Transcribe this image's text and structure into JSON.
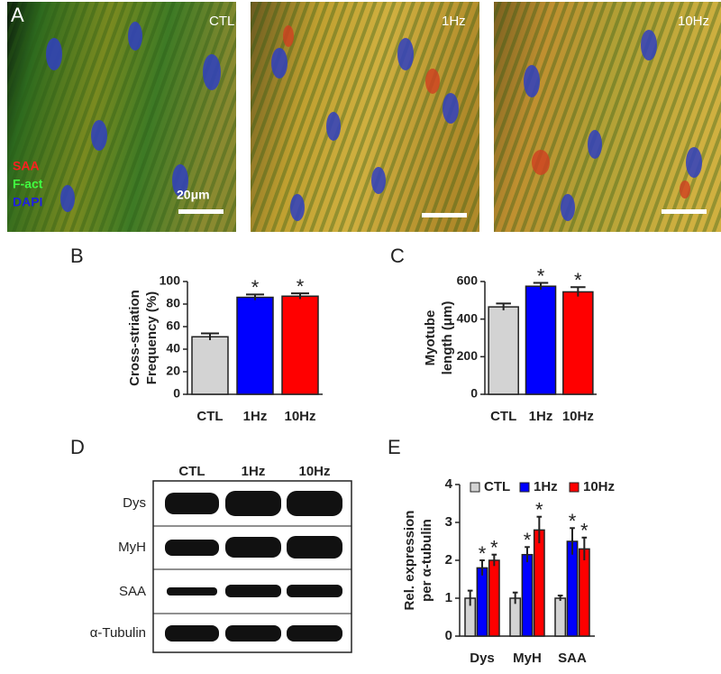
{
  "panels": {
    "a": "A",
    "b": "B",
    "c": "C",
    "d": "D",
    "e": "E"
  },
  "images": [
    {
      "label": "CTL",
      "legend": [
        "SAA",
        "F-act",
        "DAPI"
      ],
      "scale": "20μm"
    },
    {
      "label": "1Hz"
    },
    {
      "label": "10Hz"
    }
  ],
  "blot": {
    "columns": [
      "CTL",
      "1Hz",
      "10Hz"
    ],
    "rows": [
      "Dys",
      "MyH",
      "SAA",
      "α-Tubulin"
    ]
  },
  "chart_data": [
    {
      "type": "bar",
      "ylabel": [
        "Cross-striation",
        "Frequency (%)"
      ],
      "categories": [
        "CTL",
        "1Hz",
        "10Hz"
      ],
      "values": [
        51,
        86,
        87
      ],
      "errors": [
        3,
        2.5,
        2.5
      ],
      "colors": [
        "#d3d3d3",
        "#0000ff",
        "#ff0000"
      ],
      "markers": [
        null,
        "*",
        "*"
      ],
      "ylim": [
        0,
        100
      ],
      "yticks": [
        0,
        20,
        40,
        60,
        80,
        100
      ]
    },
    {
      "type": "bar",
      "ylabel": [
        "Myotube",
        "length (μm)"
      ],
      "categories": [
        "CTL",
        "1Hz",
        "10Hz"
      ],
      "values": [
        465,
        575,
        545
      ],
      "errors": [
        18,
        18,
        25
      ],
      "colors": [
        "#d3d3d3",
        "#0000ff",
        "#ff0000"
      ],
      "markers": [
        null,
        "*",
        "*"
      ],
      "ylim": [
        0,
        600
      ],
      "yticks": [
        0,
        200,
        400,
        600
      ]
    },
    {
      "type": "grouped-bar",
      "ylabel": [
        "Rel. expression",
        "per α-tubulin"
      ],
      "categories": [
        "Dys",
        "MyH",
        "SAA"
      ],
      "series": [
        {
          "name": "CTL",
          "color": "#d3d3d3",
          "values": [
            1,
            1,
            1
          ],
          "errors": [
            0.2,
            0.15,
            0.07
          ],
          "markers": [
            null,
            null,
            null
          ]
        },
        {
          "name": "1Hz",
          "color": "#0000ff",
          "values": [
            1.8,
            2.15,
            2.5
          ],
          "errors": [
            0.2,
            0.2,
            0.35
          ],
          "markers": [
            "*",
            "*",
            "*"
          ]
        },
        {
          "name": "10Hz",
          "color": "#ff0000",
          "values": [
            2.0,
            2.8,
            2.3
          ],
          "errors": [
            0.15,
            0.35,
            0.3
          ],
          "markers": [
            "*",
            "*",
            "*"
          ]
        }
      ],
      "ylim": [
        0,
        4
      ],
      "yticks": [
        0,
        1,
        2,
        3,
        4
      ],
      "legend": "top"
    }
  ]
}
